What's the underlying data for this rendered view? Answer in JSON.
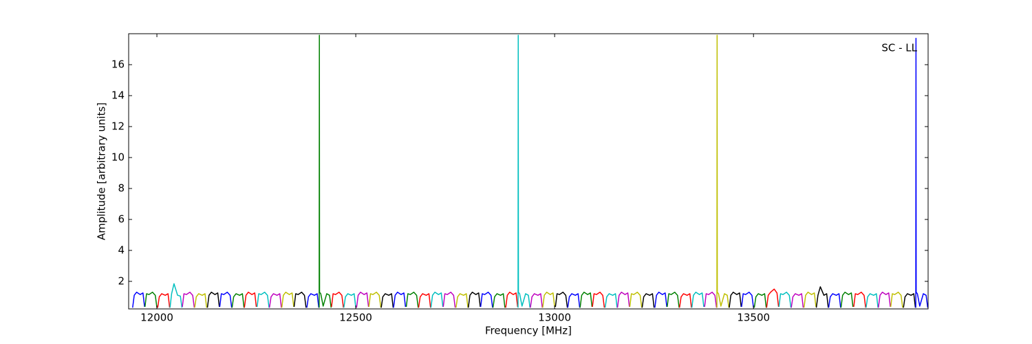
{
  "chart_data": {
    "type": "line",
    "xlabel": "Frequency [MHz]",
    "ylabel": "Amplitude [arbitrary units]",
    "annotation": "SC - LL",
    "xlim": [
      11929,
      13939
    ],
    "ylim": [
      0.22,
      18
    ],
    "xticks": [
      12000,
      12500,
      13000,
      13500
    ],
    "yticks": [
      2,
      4,
      6,
      8,
      10,
      12,
      14,
      16
    ],
    "grid": false,
    "series": [
      {
        "color": "#0000ff",
        "x": [
          11939,
          11943,
          11949,
          11958,
          11965,
          11969
        ],
        "values": [
          0.3,
          1.1,
          1.3,
          1.15,
          1.25,
          0.35
        ]
      },
      {
        "color": "#008000",
        "x": [
          11970,
          11974,
          11980,
          11989,
          11996,
          12000
        ],
        "values": [
          0.35,
          1.2,
          1.15,
          1.3,
          1.1,
          0.3
        ]
      },
      {
        "color": "#ff0000",
        "x": [
          12002,
          12006,
          12012,
          12021,
          12028,
          12032
        ],
        "values": [
          0.3,
          1.0,
          1.2,
          1.1,
          1.2,
          0.3
        ]
      },
      {
        "color": "#00bfbf",
        "x": [
          12033,
          12037,
          12043,
          12052,
          12059,
          12063
        ],
        "values": [
          0.3,
          1.2,
          1.85,
          1.1,
          1.05,
          0.3
        ]
      },
      {
        "color": "#bf00bf",
        "x": [
          12064,
          12068,
          12074,
          12083,
          12090,
          12094
        ],
        "values": [
          0.35,
          1.2,
          1.15,
          1.3,
          1.1,
          0.3
        ]
      },
      {
        "color": "#bfbf00",
        "x": [
          12095,
          12099,
          12105,
          12114,
          12121,
          12125
        ],
        "values": [
          0.3,
          1.0,
          1.2,
          1.1,
          1.2,
          0.3
        ]
      },
      {
        "color": "#000000",
        "x": [
          12127,
          12131,
          12137,
          12146,
          12153,
          12157
        ],
        "values": [
          0.3,
          1.1,
          1.3,
          1.15,
          1.25,
          0.35
        ]
      },
      {
        "color": "#0000ff",
        "x": [
          12158,
          12162,
          12168,
          12177,
          12184,
          12188
        ],
        "values": [
          0.35,
          1.2,
          1.15,
          1.3,
          1.1,
          0.3
        ]
      },
      {
        "color": "#008000",
        "x": [
          12189,
          12193,
          12199,
          12208,
          12215,
          12219
        ],
        "values": [
          0.3,
          1.0,
          1.2,
          1.1,
          1.2,
          0.3
        ]
      },
      {
        "color": "#ff0000",
        "x": [
          12220,
          12224,
          12230,
          12239,
          12246,
          12250
        ],
        "values": [
          0.3,
          1.1,
          1.3,
          1.15,
          1.25,
          0.35
        ]
      },
      {
        "color": "#00bfbf",
        "x": [
          12252,
          12256,
          12262,
          12271,
          12278,
          12282
        ],
        "values": [
          0.35,
          1.2,
          1.15,
          1.3,
          1.1,
          0.3
        ]
      },
      {
        "color": "#bf00bf",
        "x": [
          12283,
          12287,
          12293,
          12302,
          12309,
          12313
        ],
        "values": [
          0.3,
          1.0,
          1.2,
          1.1,
          1.2,
          0.3
        ]
      },
      {
        "color": "#bfbf00",
        "x": [
          12314,
          12318,
          12324,
          12333,
          12340,
          12344
        ],
        "values": [
          0.3,
          1.1,
          1.3,
          1.15,
          1.25,
          0.35
        ]
      },
      {
        "color": "#000000",
        "x": [
          12345,
          12349,
          12355,
          12364,
          12371,
          12375
        ],
        "values": [
          0.35,
          1.2,
          1.15,
          1.3,
          1.1,
          0.3
        ]
      },
      {
        "color": "#0000ff",
        "x": [
          12377,
          12381,
          12387,
          12396,
          12403,
          12407
        ],
        "values": [
          0.3,
          1.0,
          1.2,
          1.1,
          1.2,
          0.3
        ]
      },
      {
        "color": "#008000",
        "x": [
          12408,
          12408.5,
          12409,
          12412,
          12418,
          12427,
          12434,
          12438
        ],
        "values": [
          0.3,
          17.9,
          1.3,
          1.2,
          0.4,
          1.2,
          1.1,
          0.3
        ]
      },
      {
        "color": "#ff0000",
        "x": [
          12439,
          12443,
          12449,
          12458,
          12465,
          12469
        ],
        "values": [
          0.35,
          1.2,
          1.15,
          1.3,
          1.1,
          0.3
        ]
      },
      {
        "color": "#00bfbf",
        "x": [
          12470,
          12474,
          12480,
          12489,
          12496,
          12500
        ],
        "values": [
          0.3,
          1.0,
          1.2,
          1.1,
          1.2,
          0.3
        ]
      },
      {
        "color": "#bf00bf",
        "x": [
          12502,
          12506,
          12512,
          12521,
          12528,
          12532
        ],
        "values": [
          0.3,
          1.1,
          1.3,
          1.15,
          1.25,
          0.35
        ]
      },
      {
        "color": "#bfbf00",
        "x": [
          12533,
          12537,
          12543,
          12552,
          12559,
          12563
        ],
        "values": [
          0.35,
          1.2,
          1.15,
          1.3,
          1.1,
          0.3
        ]
      },
      {
        "color": "#000000",
        "x": [
          12564,
          12568,
          12574,
          12583,
          12590,
          12594
        ],
        "values": [
          0.3,
          1.0,
          1.2,
          1.1,
          1.2,
          0.3
        ]
      },
      {
        "color": "#0000ff",
        "x": [
          12595,
          12599,
          12605,
          12614,
          12621,
          12625
        ],
        "values": [
          0.3,
          1.1,
          1.3,
          1.15,
          1.25,
          0.35
        ]
      },
      {
        "color": "#008000",
        "x": [
          12627,
          12631,
          12637,
          12646,
          12653,
          12657
        ],
        "values": [
          0.35,
          1.2,
          1.15,
          1.3,
          1.1,
          0.3
        ]
      },
      {
        "color": "#ff0000",
        "x": [
          12658,
          12662,
          12668,
          12677,
          12684,
          12688
        ],
        "values": [
          0.3,
          1.0,
          1.2,
          1.1,
          1.2,
          0.3
        ]
      },
      {
        "color": "#00bfbf",
        "x": [
          12689,
          12693,
          12699,
          12708,
          12715,
          12719
        ],
        "values": [
          0.3,
          1.1,
          1.3,
          1.15,
          1.25,
          0.35
        ]
      },
      {
        "color": "#bf00bf",
        "x": [
          12720,
          12724,
          12730,
          12739,
          12746,
          12750
        ],
        "values": [
          0.35,
          1.2,
          1.15,
          1.3,
          1.1,
          0.3
        ]
      },
      {
        "color": "#bfbf00",
        "x": [
          12752,
          12756,
          12762,
          12771,
          12778,
          12782
        ],
        "values": [
          0.3,
          1.0,
          1.2,
          1.1,
          1.2,
          0.3
        ]
      },
      {
        "color": "#000000",
        "x": [
          12783,
          12787,
          12793,
          12802,
          12809,
          12813
        ],
        "values": [
          0.3,
          1.1,
          1.3,
          1.15,
          1.25,
          0.35
        ]
      },
      {
        "color": "#0000ff",
        "x": [
          12814,
          12818,
          12824,
          12833,
          12840,
          12844
        ],
        "values": [
          0.35,
          1.2,
          1.15,
          1.3,
          1.1,
          0.3
        ]
      },
      {
        "color": "#008000",
        "x": [
          12845,
          12849,
          12855,
          12864,
          12871,
          12875
        ],
        "values": [
          0.3,
          1.0,
          1.2,
          1.1,
          1.2,
          0.3
        ]
      },
      {
        "color": "#ff0000",
        "x": [
          12877,
          12881,
          12887,
          12896,
          12903,
          12907
        ],
        "values": [
          0.3,
          1.1,
          1.3,
          1.15,
          1.25,
          0.35
        ]
      },
      {
        "color": "#00bfbf",
        "x": [
          12908,
          12908.5,
          12909,
          12912,
          12918,
          12927,
          12934,
          12938
        ],
        "values": [
          0.3,
          17.9,
          1.3,
          1.2,
          0.4,
          1.2,
          1.1,
          0.3
        ]
      },
      {
        "color": "#bf00bf",
        "x": [
          12939,
          12943,
          12949,
          12958,
          12965,
          12969
        ],
        "values": [
          0.3,
          1.0,
          1.2,
          1.1,
          1.2,
          0.3
        ]
      },
      {
        "color": "#bfbf00",
        "x": [
          12970,
          12974,
          12980,
          12989,
          12996,
          13000
        ],
        "values": [
          0.3,
          1.1,
          1.3,
          1.15,
          1.25,
          0.35
        ]
      },
      {
        "color": "#000000",
        "x": [
          13002,
          13006,
          13012,
          13021,
          13028,
          13032
        ],
        "values": [
          0.35,
          1.2,
          1.15,
          1.3,
          1.1,
          0.3
        ]
      },
      {
        "color": "#0000ff",
        "x": [
          13033,
          13037,
          13043,
          13052,
          13059,
          13063
        ],
        "values": [
          0.3,
          1.0,
          1.2,
          1.1,
          1.2,
          0.3
        ]
      },
      {
        "color": "#008000",
        "x": [
          13064,
          13068,
          13074,
          13083,
          13090,
          13094
        ],
        "values": [
          0.3,
          1.1,
          1.3,
          1.15,
          1.25,
          0.35
        ]
      },
      {
        "color": "#ff0000",
        "x": [
          13095,
          13099,
          13105,
          13114,
          13121,
          13125
        ],
        "values": [
          0.35,
          1.2,
          1.15,
          1.3,
          1.1,
          0.3
        ]
      },
      {
        "color": "#00bfbf",
        "x": [
          13127,
          13131,
          13137,
          13146,
          13153,
          13157
        ],
        "values": [
          0.3,
          1.0,
          1.2,
          1.1,
          1.2,
          0.3
        ]
      },
      {
        "color": "#bf00bf",
        "x": [
          13158,
          13162,
          13168,
          13177,
          13184,
          13188
        ],
        "values": [
          0.3,
          1.1,
          1.3,
          1.15,
          1.25,
          0.35
        ]
      },
      {
        "color": "#bfbf00",
        "x": [
          13189,
          13193,
          13199,
          13208,
          13215,
          13219
        ],
        "values": [
          0.35,
          1.2,
          1.15,
          1.3,
          1.1,
          0.3
        ]
      },
      {
        "color": "#000000",
        "x": [
          13220,
          13224,
          13230,
          13239,
          13246,
          13250
        ],
        "values": [
          0.3,
          1.0,
          1.2,
          1.1,
          1.2,
          0.3
        ]
      },
      {
        "color": "#0000ff",
        "x": [
          13252,
          13256,
          13262,
          13271,
          13278,
          13282
        ],
        "values": [
          0.3,
          1.1,
          1.3,
          1.15,
          1.25,
          0.35
        ]
      },
      {
        "color": "#008000",
        "x": [
          13283,
          13287,
          13293,
          13302,
          13309,
          13313
        ],
        "values": [
          0.35,
          1.2,
          1.15,
          1.3,
          1.1,
          0.3
        ]
      },
      {
        "color": "#ff0000",
        "x": [
          13314,
          13318,
          13324,
          13333,
          13340,
          13344
        ],
        "values": [
          0.3,
          1.0,
          1.2,
          1.1,
          1.2,
          0.3
        ]
      },
      {
        "color": "#00bfbf",
        "x": [
          13345,
          13349,
          13355,
          13364,
          13371,
          13375
        ],
        "values": [
          0.3,
          1.1,
          1.3,
          1.15,
          1.25,
          0.35
        ]
      },
      {
        "color": "#bf00bf",
        "x": [
          13377,
          13381,
          13387,
          13396,
          13403,
          13407
        ],
        "values": [
          0.35,
          1.2,
          1.15,
          1.3,
          1.1,
          0.3
        ]
      },
      {
        "color": "#bfbf00",
        "x": [
          13408,
          13408.5,
          13409,
          13412,
          13418,
          13427,
          13434,
          13438
        ],
        "values": [
          0.3,
          17.9,
          1.3,
          1.2,
          0.4,
          1.2,
          1.1,
          0.3
        ]
      },
      {
        "color": "#000000",
        "x": [
          13439,
          13443,
          13449,
          13458,
          13465,
          13469
        ],
        "values": [
          0.3,
          1.1,
          1.3,
          1.15,
          1.25,
          0.35
        ]
      },
      {
        "color": "#0000ff",
        "x": [
          13470,
          13474,
          13480,
          13489,
          13496,
          13500
        ],
        "values": [
          0.35,
          1.2,
          1.15,
          1.3,
          1.1,
          0.3
        ]
      },
      {
        "color": "#008000",
        "x": [
          13502,
          13506,
          13512,
          13521,
          13528,
          13532
        ],
        "values": [
          0.3,
          1.0,
          1.2,
          1.1,
          1.2,
          0.3
        ]
      },
      {
        "color": "#ff0000",
        "x": [
          13533,
          13537,
          13543,
          13552,
          13559,
          13563
        ],
        "values": [
          0.3,
          1.1,
          1.3,
          1.5,
          1.25,
          0.35
        ]
      },
      {
        "color": "#00bfbf",
        "x": [
          13564,
          13568,
          13574,
          13583,
          13590,
          13594
        ],
        "values": [
          0.35,
          1.2,
          1.15,
          1.3,
          1.1,
          0.3
        ]
      },
      {
        "color": "#bf00bf",
        "x": [
          13595,
          13599,
          13605,
          13614,
          13621,
          13625
        ],
        "values": [
          0.3,
          1.0,
          1.2,
          1.1,
          1.2,
          0.3
        ]
      },
      {
        "color": "#bfbf00",
        "x": [
          13627,
          13631,
          13637,
          13646,
          13653,
          13657
        ],
        "values": [
          0.3,
          1.1,
          1.3,
          1.15,
          1.25,
          0.35
        ]
      },
      {
        "color": "#000000",
        "x": [
          13658,
          13662,
          13668,
          13677,
          13684,
          13688
        ],
        "values": [
          0.3,
          1.1,
          1.65,
          1.1,
          1.2,
          0.3
        ]
      },
      {
        "color": "#0000ff",
        "x": [
          13689,
          13693,
          13699,
          13708,
          13715,
          13719
        ],
        "values": [
          0.3,
          1.0,
          1.2,
          1.1,
          1.2,
          0.3
        ]
      },
      {
        "color": "#008000",
        "x": [
          13720,
          13724,
          13730,
          13739,
          13746,
          13750
        ],
        "values": [
          0.3,
          1.1,
          1.3,
          1.15,
          1.25,
          0.35
        ]
      },
      {
        "color": "#ff0000",
        "x": [
          13752,
          13756,
          13762,
          13771,
          13778,
          13782
        ],
        "values": [
          0.35,
          1.2,
          1.15,
          1.3,
          1.1,
          0.3
        ]
      },
      {
        "color": "#00bfbf",
        "x": [
          13783,
          13787,
          13793,
          13802,
          13809,
          13813
        ],
        "values": [
          0.3,
          1.0,
          1.2,
          1.1,
          1.2,
          0.3
        ]
      },
      {
        "color": "#bf00bf",
        "x": [
          13814,
          13818,
          13824,
          13833,
          13840,
          13844
        ],
        "values": [
          0.3,
          1.1,
          1.3,
          1.15,
          1.25,
          0.35
        ]
      },
      {
        "color": "#bfbf00",
        "x": [
          13845,
          13849,
          13855,
          13864,
          13871,
          13875
        ],
        "values": [
          0.35,
          1.2,
          1.15,
          1.3,
          1.1,
          0.3
        ]
      },
      {
        "color": "#000000",
        "x": [
          13877,
          13881,
          13887,
          13896,
          13903,
          13907
        ],
        "values": [
          0.3,
          1.0,
          1.2,
          1.1,
          1.2,
          0.3
        ]
      },
      {
        "color": "#0000ff",
        "x": [
          13908,
          13908.5,
          13909,
          13912,
          13918,
          13927,
          13934,
          13938
        ],
        "values": [
          0.3,
          17.7,
          1.3,
          1.2,
          0.4,
          1.2,
          1.1,
          0.3
        ]
      }
    ]
  }
}
